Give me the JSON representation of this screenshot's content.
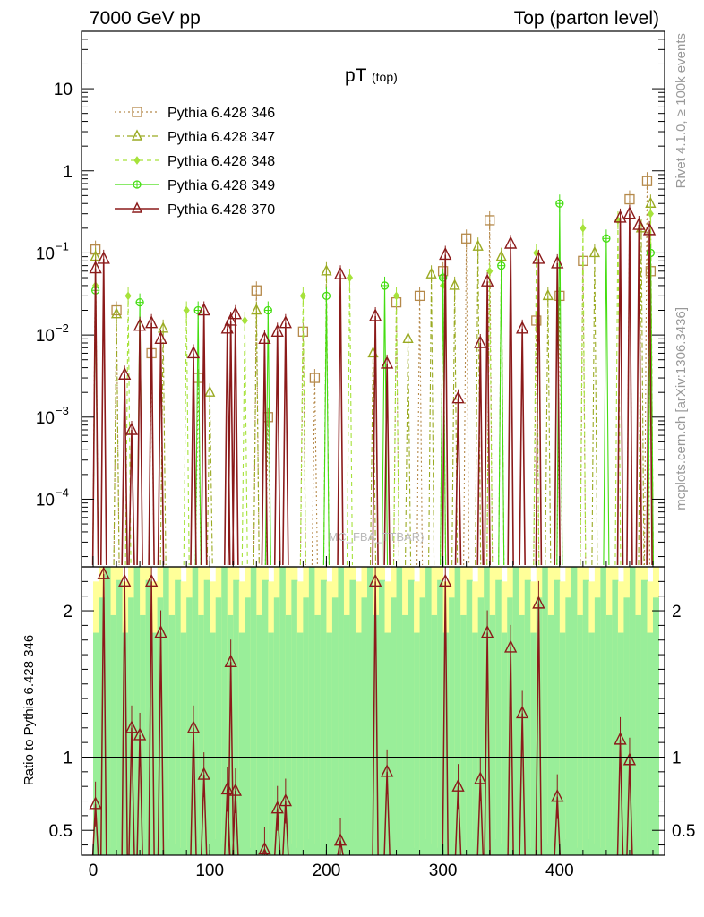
{
  "header": {
    "left": "7000 GeV pp",
    "right": "Top (parton level)"
  },
  "side": {
    "rivet": "Rivet 4.1.0, ≥ 100k events",
    "mcplots": "mcplots.cern.ch [arXiv:1306.3436]"
  },
  "plot": {
    "title_main": "pT",
    "title_sub": "(top)",
    "watermark": "MC_FBA_TTBAR)",
    "ratio_ylabel": "Ratio to Pythia 6.428 346"
  },
  "colors": {
    "s346": "#b5894a",
    "s347": "#9aaa22",
    "s348": "#a6e23a",
    "s349": "#44dd11",
    "s370": "#8b1a1a",
    "band_yellow": "#ffff99",
    "band_green": "#99ee99"
  },
  "chart_data": {
    "type": "line",
    "x_range": [
      -10,
      490
    ],
    "y_scale": "log",
    "y_range": [
      1.5e-05,
      50
    ],
    "ratio_range": [
      0.33,
      2.3
    ],
    "x_ticks": [
      "0",
      "100",
      "200",
      "300",
      "400"
    ],
    "y_ticks": [
      "10",
      "1",
      "10^-1",
      "10^-2",
      "10^-3",
      "10^-4"
    ],
    "ratio_ticks": [
      "2",
      "1",
      "0.5"
    ],
    "legend_position": "top-left",
    "series": [
      {
        "name": "Pythia 6.428 346",
        "marker": "square-open",
        "style": "dotted",
        "x": [
          2,
          20,
          50,
          90,
          140,
          150,
          180,
          190,
          260,
          280,
          300,
          320,
          340,
          380,
          400,
          420,
          460,
          475,
          478
        ],
        "y": [
          0.11,
          0.02,
          0.006,
          0.003,
          0.035,
          0.001,
          0.011,
          0.003,
          0.025,
          0.03,
          0.06,
          0.15,
          0.25,
          0.015,
          0.03,
          0.08,
          0.45,
          0.75,
          0.06
        ]
      },
      {
        "name": "Pythia 6.428 347",
        "marker": "triangle-open",
        "style": "dashdot",
        "x": [
          2,
          20,
          60,
          100,
          140,
          200,
          240,
          270,
          290,
          310,
          330,
          350,
          390,
          430,
          470,
          478
        ],
        "y": [
          0.09,
          0.018,
          0.012,
          0.002,
          0.02,
          0.06,
          0.006,
          0.009,
          0.055,
          0.04,
          0.12,
          0.09,
          0.03,
          0.1,
          0.2,
          0.4
        ]
      },
      {
        "name": "Pythia 6.428 348",
        "marker": "diamond",
        "style": "dashed",
        "x": [
          2,
          30,
          80,
          130,
          180,
          220,
          260,
          300,
          340,
          380,
          420,
          450,
          478
        ],
        "y": [
          0.04,
          0.03,
          0.02,
          0.015,
          0.03,
          0.05,
          0.03,
          0.04,
          0.06,
          0.1,
          0.2,
          0.25,
          0.3
        ]
      },
      {
        "name": "Pythia 6.428 349",
        "marker": "circle-cross",
        "style": "solid",
        "x": [
          2,
          40,
          90,
          150,
          200,
          250,
          300,
          350,
          400,
          440,
          478
        ],
        "y": [
          0.035,
          0.025,
          0.02,
          0.02,
          0.03,
          0.04,
          0.05,
          0.07,
          0.4,
          0.15,
          0.1
        ]
      },
      {
        "name": "Pythia 6.428 370",
        "marker": "triangle-open",
        "style": "solid",
        "x": [
          2,
          9,
          27,
          33,
          40,
          50,
          58,
          86,
          95,
          115,
          118,
          122,
          147,
          158,
          165,
          212,
          242,
          252,
          302,
          313,
          332,
          338,
          358,
          368,
          382,
          398,
          452,
          460,
          468,
          477
        ],
        "y": [
          0.065,
          0.085,
          0.0033,
          0.0007,
          0.013,
          0.014,
          0.009,
          0.006,
          0.02,
          0.012,
          0.015,
          0.018,
          0.009,
          0.011,
          0.014,
          0.055,
          0.017,
          0.0045,
          0.095,
          0.0017,
          0.008,
          0.045,
          0.13,
          0.012,
          0.085,
          0.075,
          0.27,
          0.3,
          0.22,
          0.19
        ]
      }
    ],
    "ratio_series": {
      "x": [
        2,
        9,
        27,
        33,
        40,
        50,
        58,
        86,
        95,
        115,
        118,
        122,
        147,
        158,
        165,
        212,
        242,
        252,
        302,
        313,
        332,
        338,
        358,
        368,
        382,
        398,
        452,
        460
      ],
      "y": [
        0.68,
        2.25,
        2.2,
        1.2,
        1.15,
        2.2,
        1.85,
        1.2,
        0.88,
        0.78,
        1.65,
        0.77,
        0.37,
        0.65,
        0.7,
        0.43,
        2.2,
        0.9,
        2.2,
        0.8,
        0.85,
        1.85,
        1.75,
        1.3,
        2.05,
        0.73,
        1.12,
        0.98
      ]
    }
  }
}
